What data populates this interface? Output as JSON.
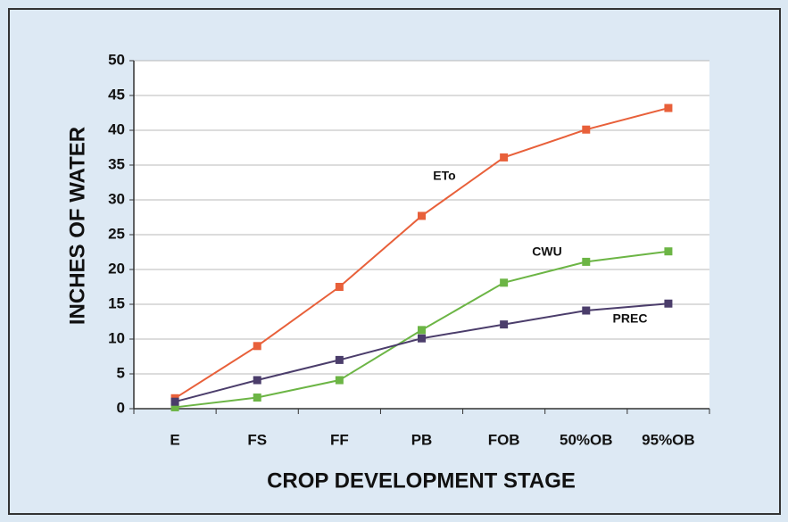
{
  "chart_data": {
    "type": "line",
    "xlabel": "CROP DEVELOPMENT STAGE",
    "ylabel": "INCHES OF WATER",
    "categories": [
      "E",
      "FS",
      "FF",
      "PB",
      "FOB",
      "50%OB",
      "95%OB"
    ],
    "series": [
      {
        "name": "ETo",
        "color": "#e8603a",
        "values": [
          1.5,
          9,
          17.5,
          27.7,
          36.1,
          40.1,
          43.2
        ]
      },
      {
        "name": "CWU",
        "color": "#6cb545",
        "values": [
          0.2,
          1.6,
          4.1,
          11.3,
          18.1,
          21.1,
          22.6
        ]
      },
      {
        "name": "PREC",
        "color": "#4b3d6b",
        "values": [
          1,
          4.1,
          7,
          10.1,
          12.1,
          14.1,
          15.1
        ]
      }
    ],
    "ylim": [
      0,
      50
    ],
    "yticks": [
      0,
      5,
      10,
      15,
      20,
      25,
      30,
      35,
      40,
      45,
      50
    ],
    "grid": true
  }
}
